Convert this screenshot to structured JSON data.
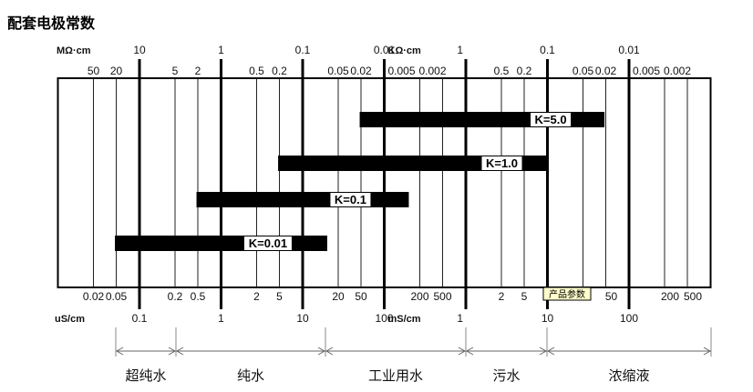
{
  "title": "配套电极常数",
  "top_scale": {
    "unit_left": "MΩ·cm",
    "unit_mid": "KΩ·cm",
    "major_labels": [
      "10",
      "1",
      "0.1",
      "0.01",
      "1",
      "0.1",
      "0.01"
    ],
    "minor_labels": [
      [
        "50",
        "20"
      ],
      [
        "5",
        "2"
      ],
      [
        "0.5",
        "0.2"
      ],
      [
        "0.05",
        "0.02"
      ],
      [
        "0.005",
        "0.002"
      ],
      [
        "0.5",
        "0.2"
      ],
      [
        "0.05",
        "0.02"
      ],
      [
        "0.005",
        "0.002"
      ]
    ]
  },
  "bottom_scale": {
    "unit_left": "uS/cm",
    "unit_mid": "mS/cm",
    "major_labels": [
      "0.1",
      "1",
      "10",
      "100",
      "1",
      "10",
      "100"
    ],
    "minor_labels": [
      [
        "0.02",
        "0.05"
      ],
      [
        "0.2",
        "0.5"
      ],
      [
        "2",
        "5"
      ],
      [
        "20",
        "50"
      ],
      [
        "200",
        "500"
      ],
      [
        "2",
        "5"
      ],
      [
        "",
        "50"
      ],
      [
        "200",
        "500"
      ]
    ]
  },
  "range_uS_cm": [
    0.01,
    1000000
  ],
  "bars": [
    {
      "label": "K=5.0",
      "min_uS_cm": 50,
      "max_uS_cm": 50000
    },
    {
      "label": "K=1.0",
      "min_uS_cm": 5,
      "max_uS_cm": 10000
    },
    {
      "label": "K=0.1",
      "min_uS_cm": 0.5,
      "max_uS_cm": 200
    },
    {
      "label": "K=0.01",
      "min_uS_cm": 0.05,
      "max_uS_cm": 20
    }
  ],
  "regions": [
    {
      "label": "超纯水",
      "from_uS_cm": 0.05,
      "to_uS_cm": 0.2
    },
    {
      "label": "纯水",
      "from_uS_cm": 0.2,
      "to_uS_cm": 15
    },
    {
      "label": "工业用水",
      "from_uS_cm": 15,
      "to_uS_cm": 1000
    },
    {
      "label": "污水",
      "from_uS_cm": 1000,
      "to_uS_cm": 10000
    },
    {
      "label": "浓缩液",
      "from_uS_cm": 10000,
      "to_uS_cm": 1000000
    }
  ],
  "tooltip": "产品参数",
  "colors": {
    "bar": "#000000",
    "tooltip_bg": "#ffffcc"
  }
}
